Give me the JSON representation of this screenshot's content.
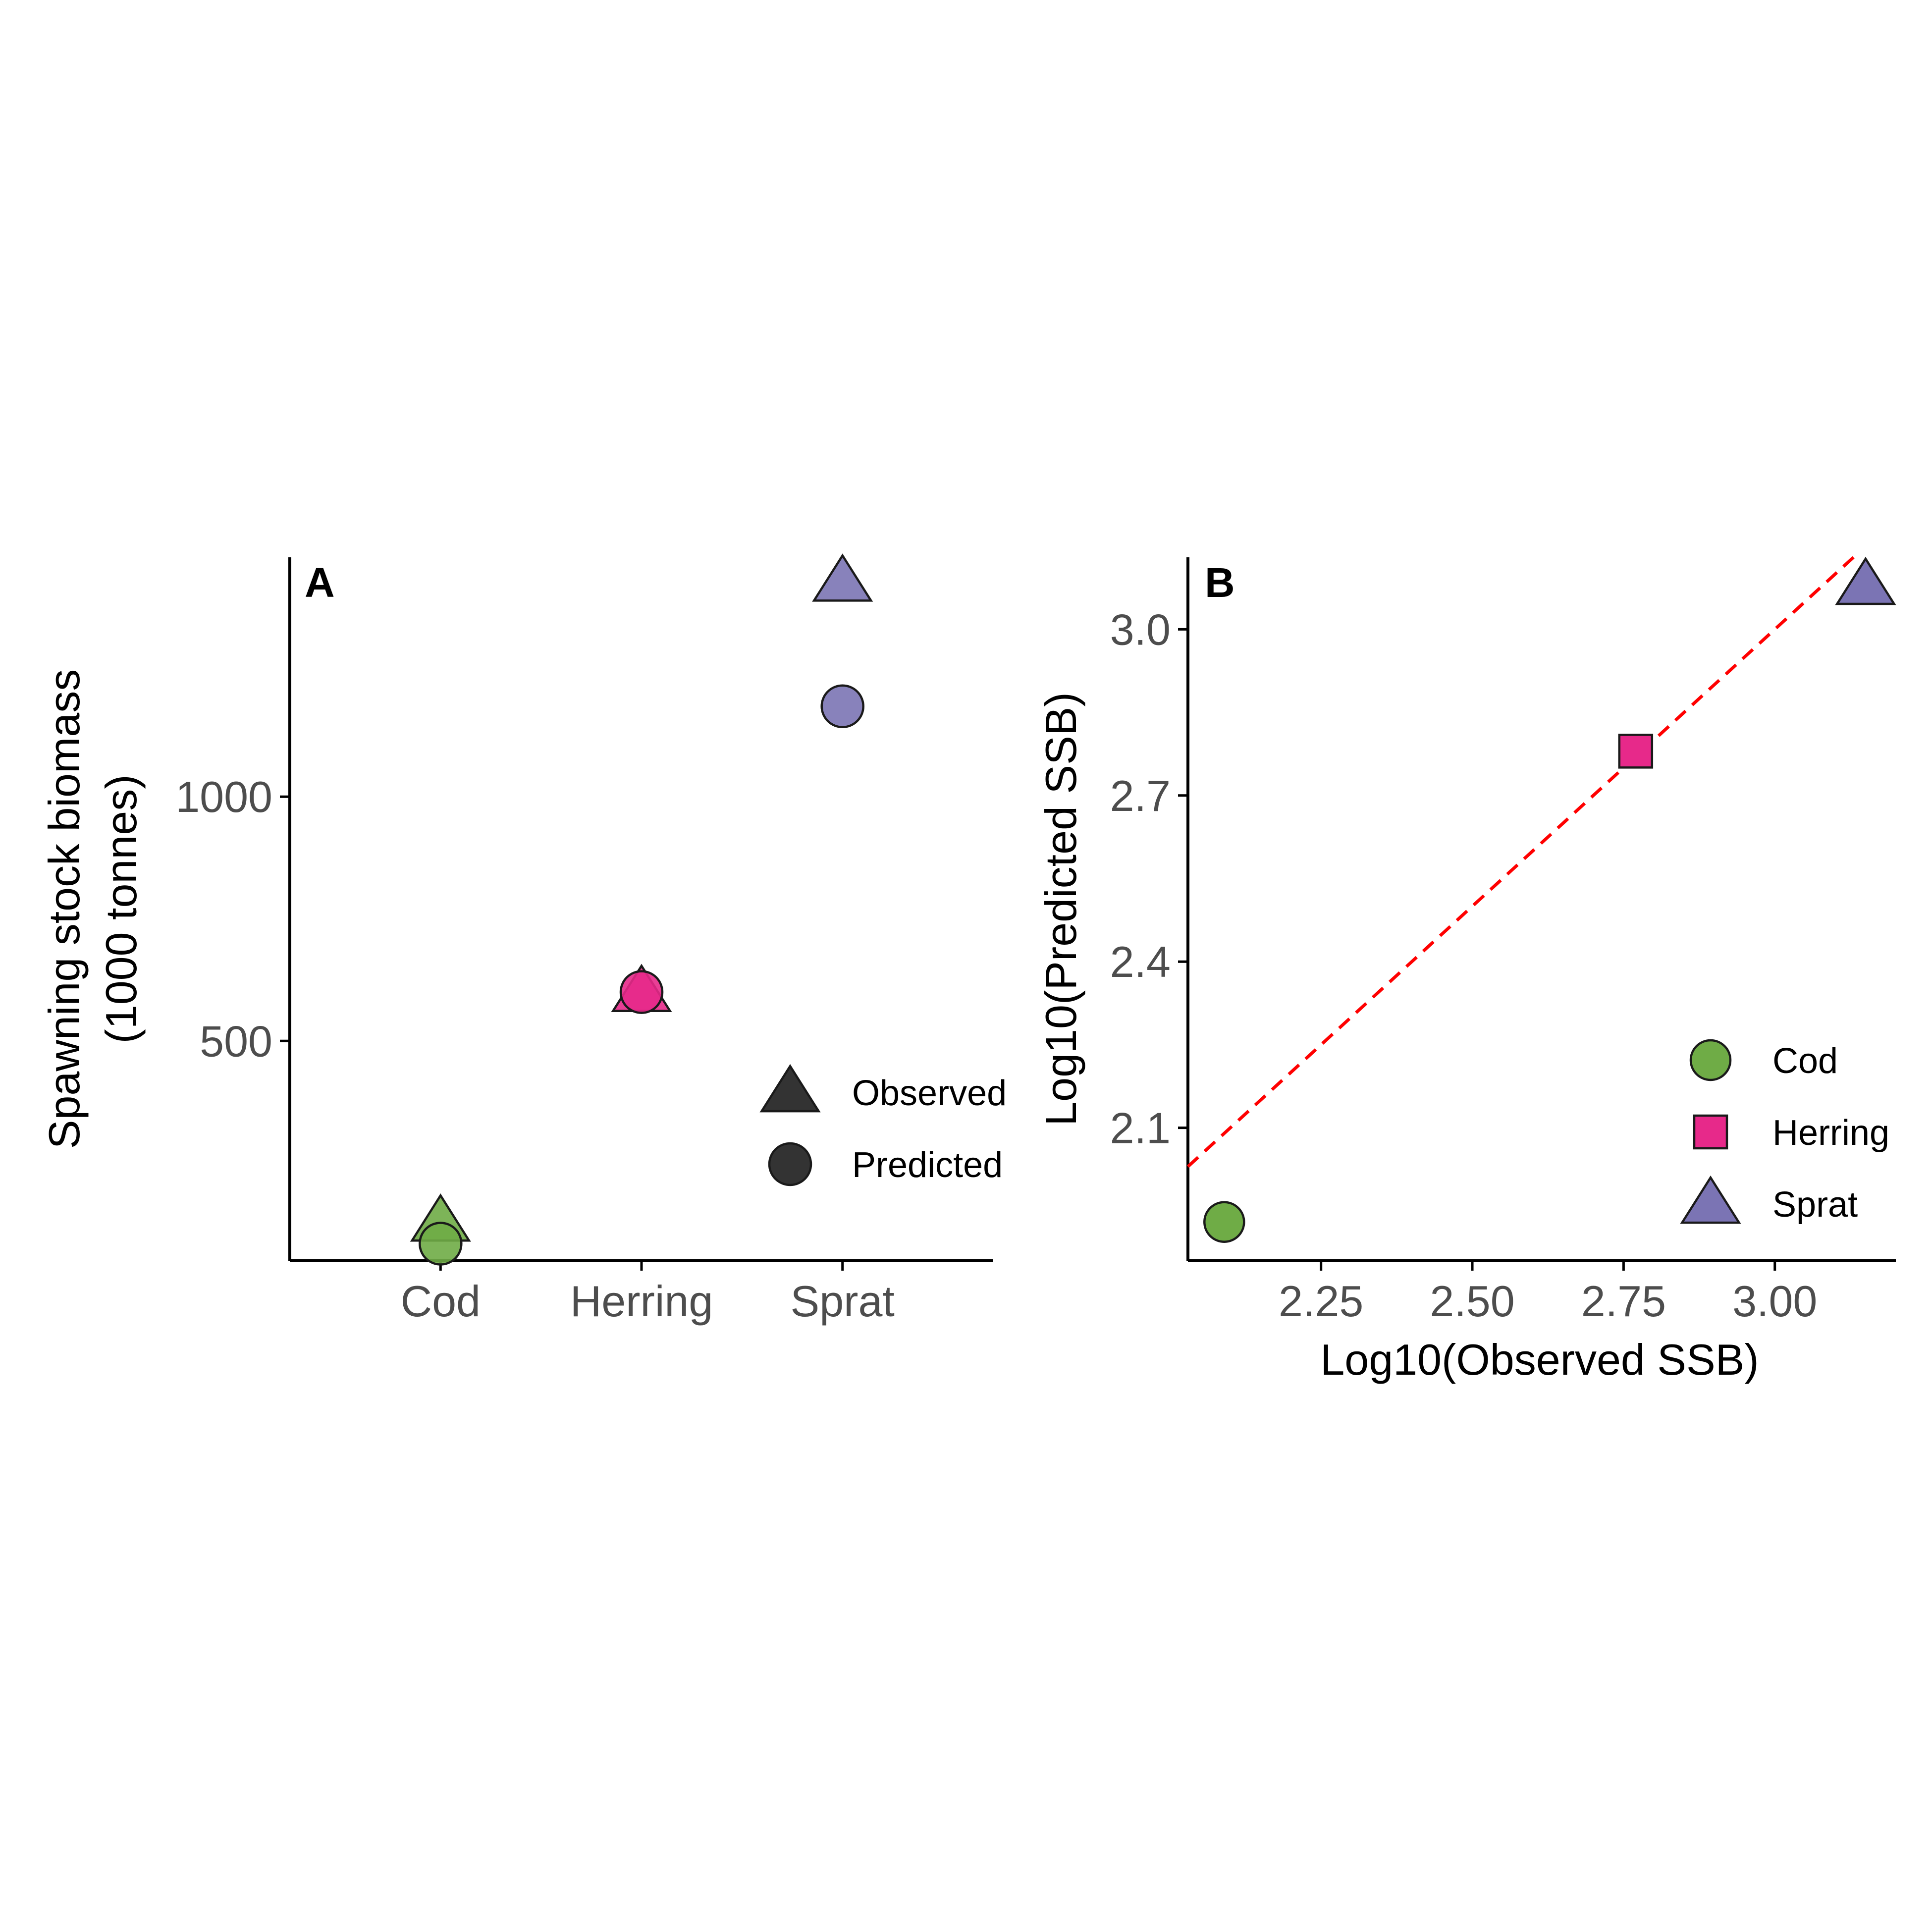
{
  "chart_data": [
    {
      "panel": "A",
      "type": "scatter",
      "categories": [
        "Cod",
        "Herring",
        "Sprat"
      ],
      "xlabel": "",
      "ylabel_lines": [
        "Spawning stock biomass",
        "(1000 tonnes)"
      ],
      "ylim": [
        50,
        1490
      ],
      "yticks": [
        500,
        1000
      ],
      "ytick_labels": [
        "500",
        "1000"
      ],
      "grid": false,
      "series": [
        {
          "name": "Observed",
          "shape": "triangle",
          "values": [
            130,
            600,
            1440
          ]
        },
        {
          "name": "Predicted",
          "shape": "circle",
          "values": [
            85,
            600,
            1185
          ]
        }
      ],
      "colors": [
        "#6fac46",
        "#e7298a",
        "#7b74b4"
      ],
      "legend": {
        "placement": "bottom-right",
        "color": "#333333",
        "entries": [
          "Observed",
          "Predicted"
        ]
      }
    },
    {
      "panel": "B",
      "type": "scatter",
      "xlabel": "Log10(Observed SSB)",
      "ylabel": "Log10(Predicted SSB)",
      "xlim": [
        2.03,
        3.2
      ],
      "ylim": [
        1.86,
        3.13
      ],
      "xticks": [
        2.25,
        2.5,
        2.75,
        3.0
      ],
      "xtick_labels": [
        "2.25",
        "2.50",
        "2.75",
        "3.00"
      ],
      "yticks": [
        2.1,
        2.4,
        2.7,
        3.0
      ],
      "ytick_labels": [
        "2.1",
        "2.4",
        "2.7",
        "3.0"
      ],
      "grid": false,
      "reference_line": {
        "type": "identity",
        "color": "#ff0000",
        "style": "dashed"
      },
      "points": [
        {
          "name": "Cod",
          "x": 2.09,
          "y": 1.93,
          "shape": "circle",
          "color": "#6fac46"
        },
        {
          "name": "Herring",
          "x": 2.77,
          "y": 2.78,
          "shape": "square",
          "color": "#e7298a"
        },
        {
          "name": "Sprat",
          "x": 3.15,
          "y": 3.08,
          "shape": "triangle",
          "color": "#7b74b4"
        }
      ],
      "legend": {
        "placement": "bottom-right",
        "entries": [
          "Cod",
          "Herring",
          "Sprat"
        ]
      }
    }
  ]
}
